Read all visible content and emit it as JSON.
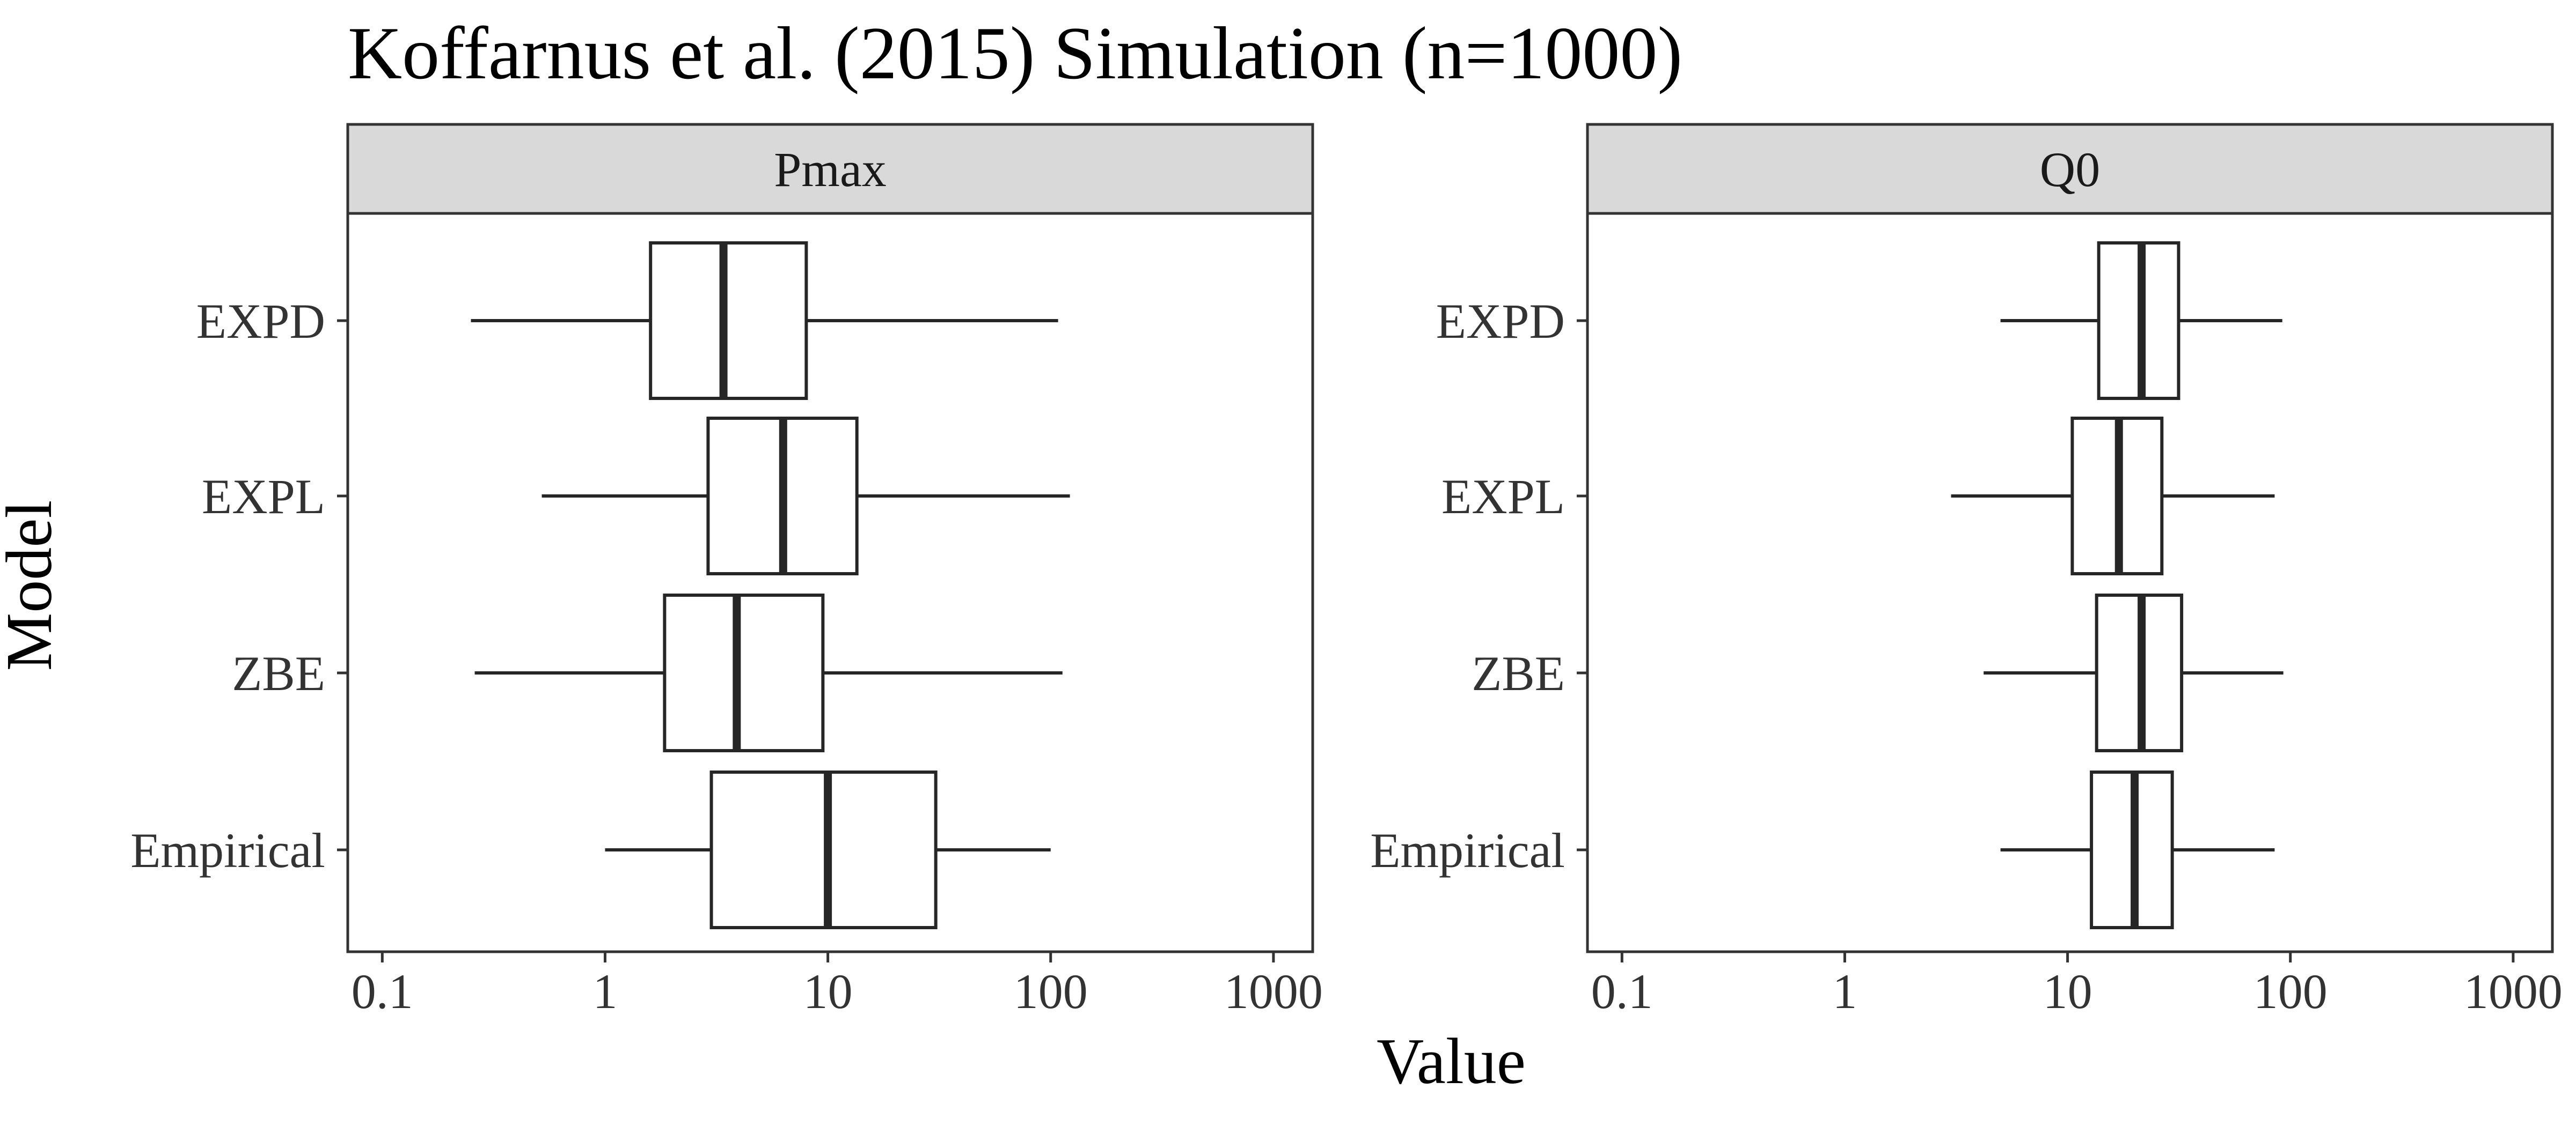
{
  "chart_data": {
    "type": "boxplot",
    "title": "Koffarnus et al. (2015) Simulation (n=1000)",
    "xlabel": "Value",
    "ylabel": "Model",
    "x_scale": "log10",
    "xlim": [
      0.07,
      1500
    ],
    "x_ticks": [
      0.1,
      1,
      10,
      100,
      1000
    ],
    "x_tick_labels": [
      "0.1",
      "1",
      "10",
      "100",
      "1000"
    ],
    "categories": [
      "EXPD",
      "EXPL",
      "ZBE",
      "Empirical"
    ],
    "grid": false,
    "colors": {
      "box_stroke": "#262626",
      "strip_fill": "#d9d9d9",
      "panel_border": "#333333",
      "tick_label": "#333333"
    },
    "panels": [
      {
        "name": "Pmax",
        "boxes": [
          {
            "category": "EXPD",
            "whisker_low": 0.25,
            "q1": 1.6,
            "median": 3.4,
            "q3": 8.0,
            "whisker_high": 108
          },
          {
            "category": "EXPL",
            "whisker_low": 0.52,
            "q1": 2.9,
            "median": 6.3,
            "q3": 13.5,
            "whisker_high": 122
          },
          {
            "category": "ZBE",
            "whisker_low": 0.26,
            "q1": 1.85,
            "median": 3.9,
            "q3": 9.5,
            "whisker_high": 113
          },
          {
            "category": "Empirical",
            "whisker_low": 1.0,
            "q1": 3.0,
            "median": 10.0,
            "q3": 30.5,
            "whisker_high": 100
          }
        ]
      },
      {
        "name": "Q0",
        "boxes": [
          {
            "category": "EXPD",
            "whisker_low": 5.0,
            "q1": 13.8,
            "median": 21.5,
            "q3": 31.5,
            "whisker_high": 92
          },
          {
            "category": "EXPL",
            "whisker_low": 3.0,
            "q1": 10.5,
            "median": 17.0,
            "q3": 26.5,
            "whisker_high": 85
          },
          {
            "category": "ZBE",
            "whisker_low": 4.2,
            "q1": 13.5,
            "median": 21.5,
            "q3": 32.5,
            "whisker_high": 93
          },
          {
            "category": "Empirical",
            "whisker_low": 5.0,
            "q1": 12.8,
            "median": 20.0,
            "q3": 29.5,
            "whisker_high": 85
          }
        ]
      }
    ]
  }
}
